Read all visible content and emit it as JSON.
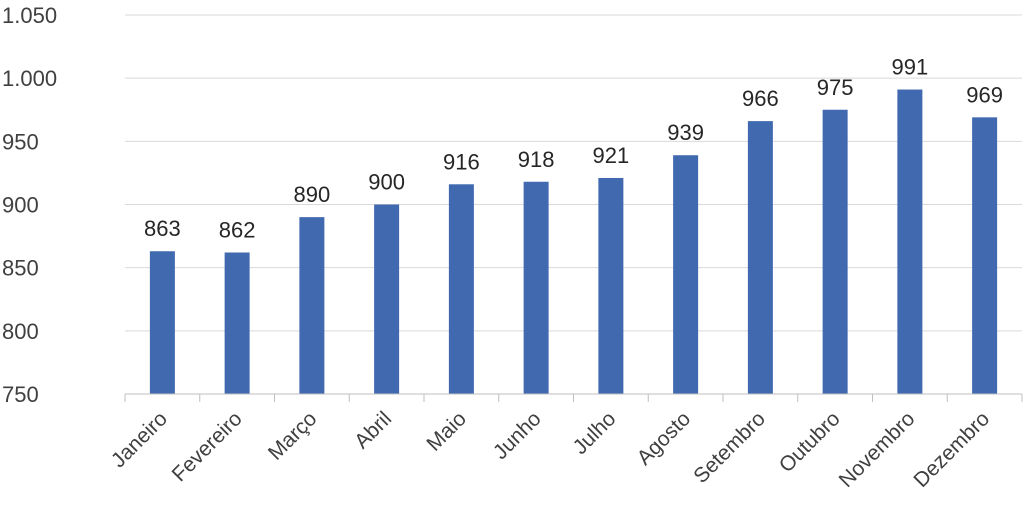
{
  "chart_data": {
    "type": "bar",
    "categories": [
      "Janeiro",
      "Fevereiro",
      "Março",
      "Abril",
      "Maio",
      "Junho",
      "Julho",
      "Agosto",
      "Setembro",
      "Outubro",
      "Novembro",
      "Dezembro"
    ],
    "values": [
      863,
      862,
      890,
      900,
      916,
      918,
      921,
      939,
      966,
      975,
      991,
      969
    ],
    "data_labels": [
      "863",
      "862",
      "890",
      "900",
      "916",
      "918",
      "921",
      "939",
      "966",
      "975",
      "991",
      "969"
    ],
    "ylim": [
      750,
      1050
    ],
    "yticks": [
      750,
      800,
      850,
      900,
      950,
      1000,
      1050
    ],
    "ytick_labels": [
      "750",
      "800",
      "850",
      "900",
      "950",
      "1.000",
      "1.050"
    ],
    "grid": true,
    "legend": "none",
    "bar_color": "#4169b0"
  }
}
